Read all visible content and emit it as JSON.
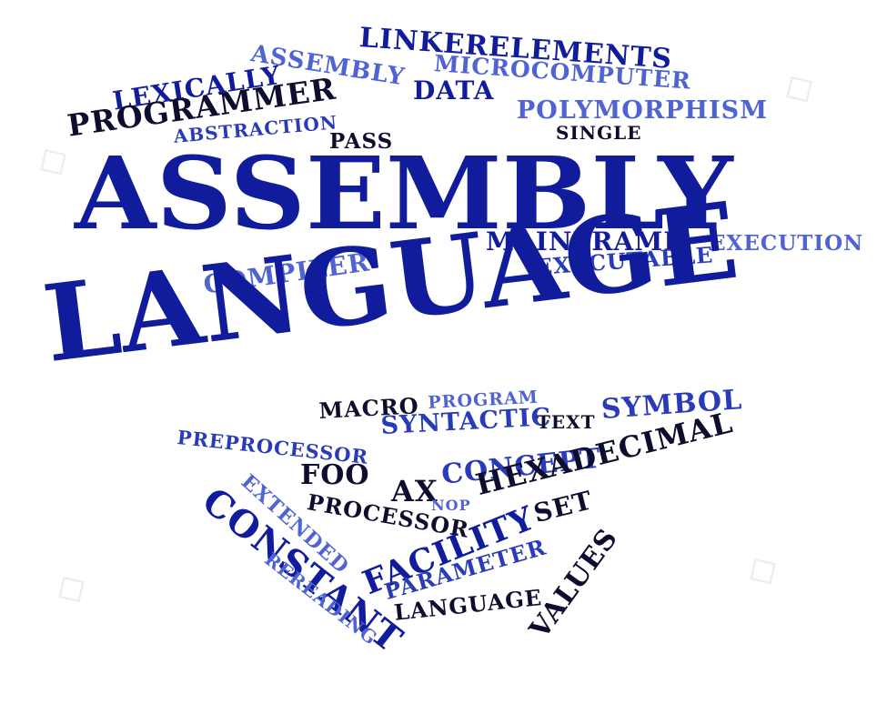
{
  "cloud": {
    "title_line1": "ASSEMBLY",
    "title_line2": "LANGUAGE",
    "words": {
      "linkerelements": "LINKERELEMENTS",
      "assembly": "ASSEMBLY",
      "microcomputer": "MICROCOMPUTER",
      "data": "DATA",
      "lexically": "LEXICALLY",
      "programmer": "PROGRAMMER",
      "abstraction": "ABSTRACTION",
      "polymorphism": "POLYMORPHISM",
      "pass": "PASS",
      "single": "SINGLE",
      "mainframe": "MAINFRAME",
      "execution": "EXECUTION",
      "compiler": "COMPILER",
      "executable": "EXECUTABLE",
      "macro": "MACRO",
      "program": "PROGRAM",
      "syntactic": "SYNTACTIC",
      "text": "TEXT",
      "symbol": "SYMBOL",
      "preprocessor": "PREPROCESSOR",
      "foo": "FOO",
      "extended": "EXTENDED",
      "ax": "AX",
      "concept": "CONCEPT",
      "hexadecimal": "HEXADECIMAL",
      "processor": "PROCESSOR",
      "nop": "NOP",
      "constant": "CONSTANT",
      "set": "SET",
      "facility": "FACILITY",
      "parameter": "PARAMETER",
      "rereading": "REREADING",
      "language": "LANGUAGE",
      "values": "VALUES"
    }
  },
  "colors": {
    "dark": "#0d0d2e",
    "navy": "#101c9c",
    "mid": "#2a3bb8",
    "light": "#4f63d3"
  }
}
